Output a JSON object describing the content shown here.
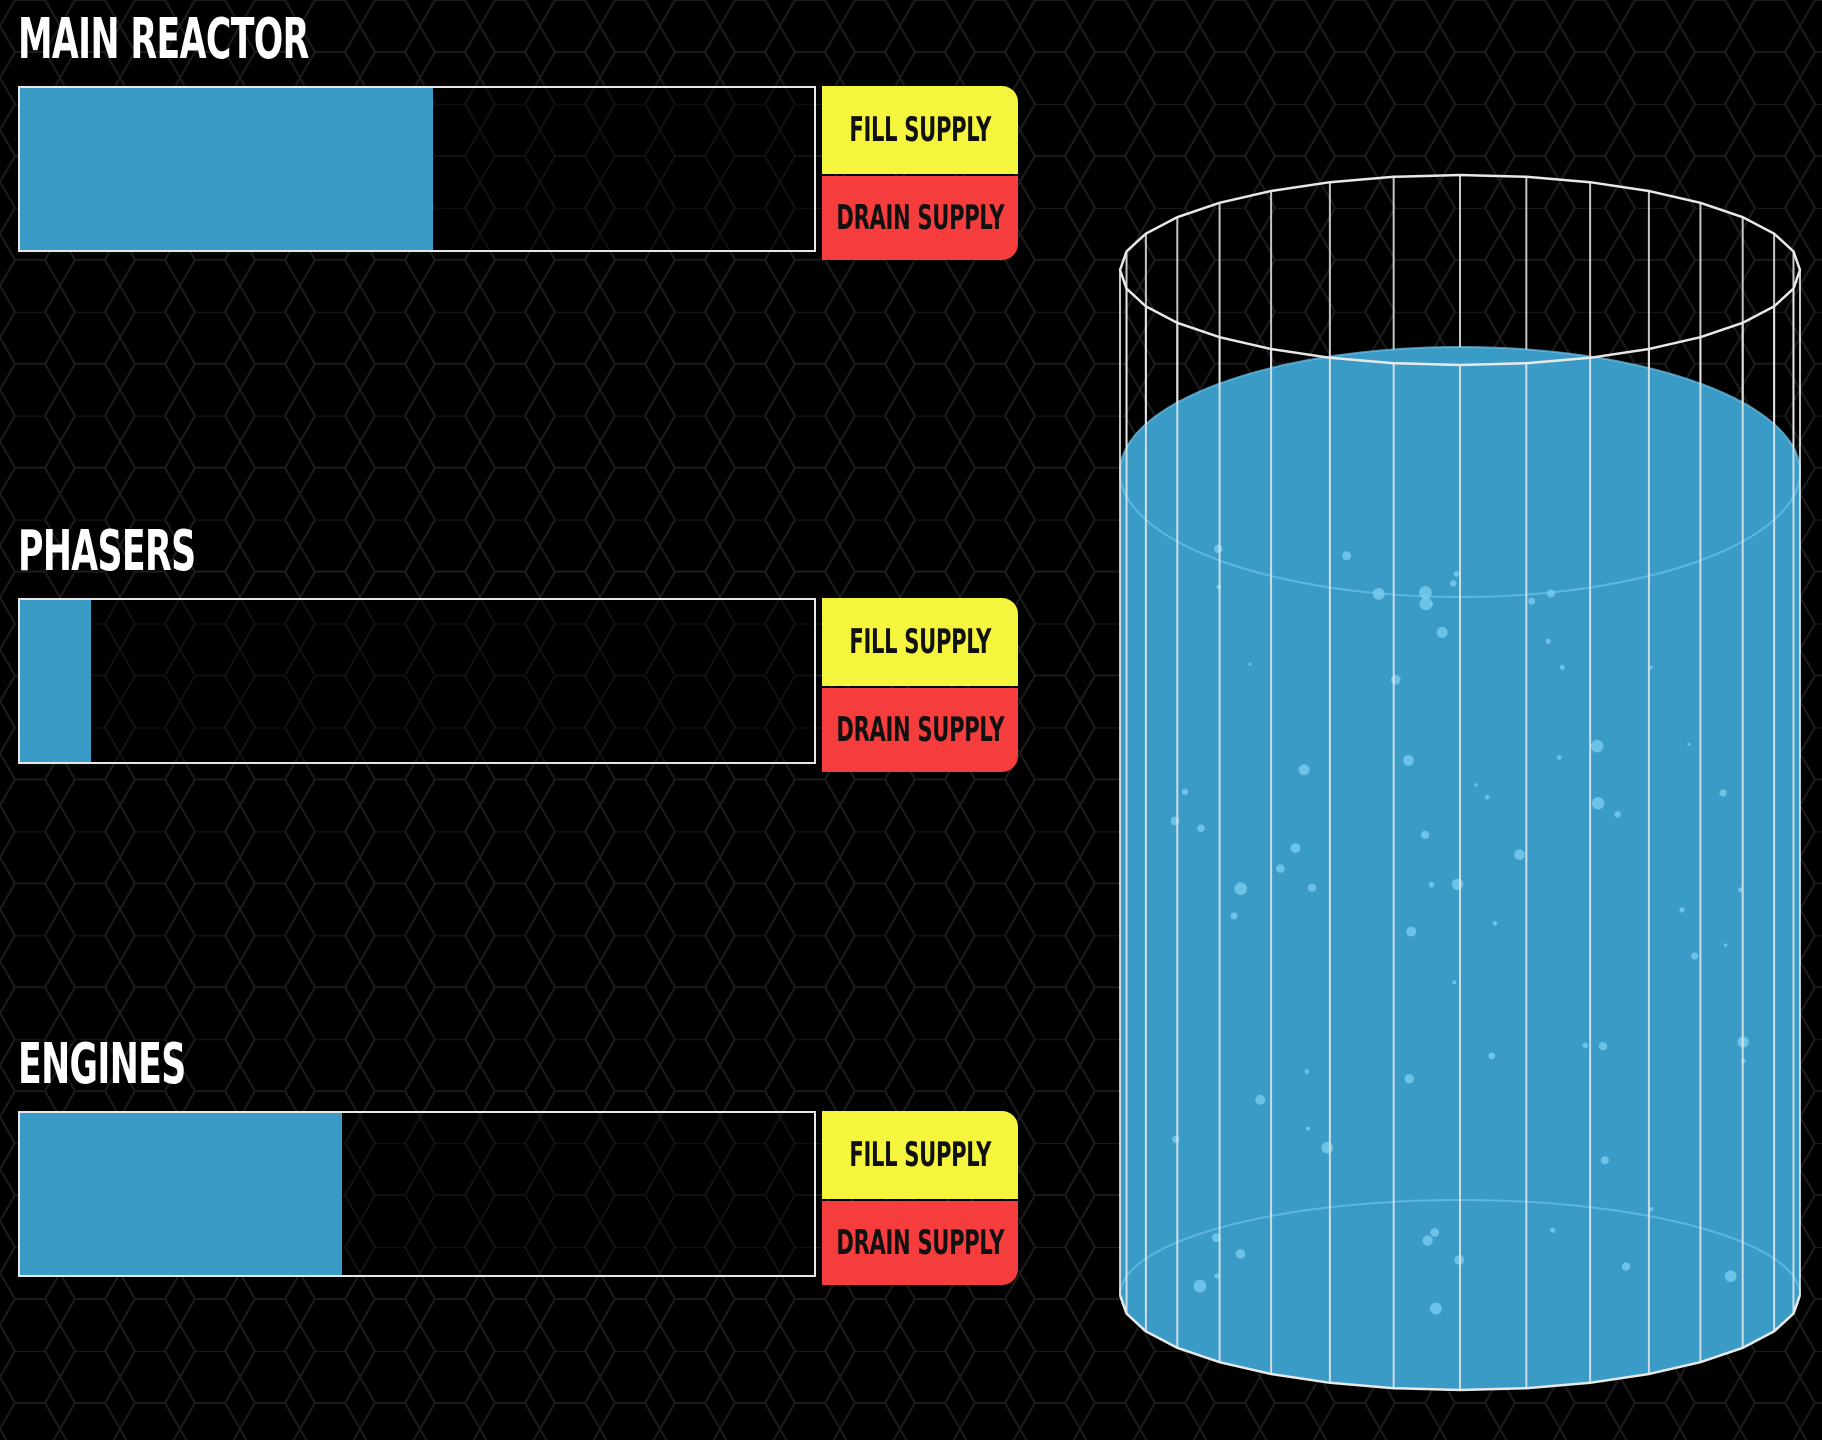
{
  "colors": {
    "background": "#000000",
    "hex_grid": "#1c1c1c",
    "gauge_fill": "#3a9bc7",
    "gauge_border": "#e8e8e8",
    "fill_button": "#f5f53d",
    "drain_button": "#f53d3d",
    "tank_liquid": "#3a9bc7",
    "tank_frame": "#e8e8e8"
  },
  "panels": [
    {
      "title": "MAIN REACTOR",
      "level": 0.52,
      "fill_label": "FILL SUPPLY",
      "drain_label": "DRAIN SUPPLY"
    },
    {
      "title": "PHASERS",
      "level": 0.09,
      "fill_label": "FILL SUPPLY",
      "drain_label": "DRAIN SUPPLY"
    },
    {
      "title": "ENGINES",
      "level": 0.405,
      "fill_label": "FILL SUPPLY",
      "drain_label": "DRAIN SUPPLY"
    }
  ],
  "tank": {
    "level": 0.92
  }
}
